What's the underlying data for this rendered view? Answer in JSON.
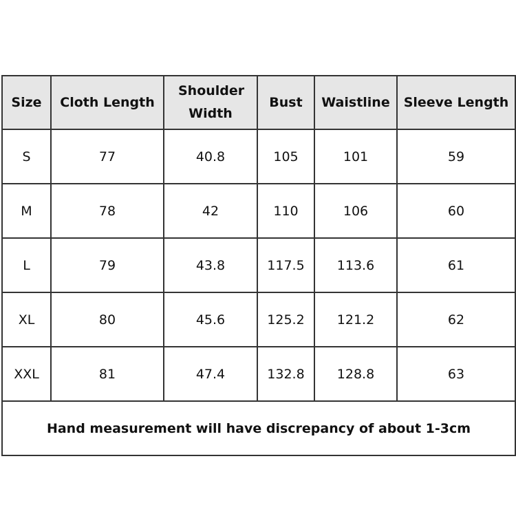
{
  "headers": [
    "Size",
    "Cloth Length",
    "Shoulder Width",
    "Bust",
    "Waistline",
    "Sleeve Length"
  ],
  "rows": [
    [
      "S",
      "77",
      "40.8",
      "105",
      "101",
      "59"
    ],
    [
      "M",
      "78",
      "42",
      "110",
      "106",
      "60"
    ],
    [
      "L",
      "79",
      "43.8",
      "117.5",
      "113.6",
      "61"
    ],
    [
      "XL",
      "80",
      "45.6",
      "125.2",
      "121.2",
      "62"
    ],
    [
      "XXL",
      "81",
      "47.4",
      "132.8",
      "128.8",
      "63"
    ]
  ],
  "note": "Hand measurement will have discrepancy of about 1-3cm",
  "colors": {
    "header_bg": "#e6e6e6",
    "border": "#333333"
  }
}
